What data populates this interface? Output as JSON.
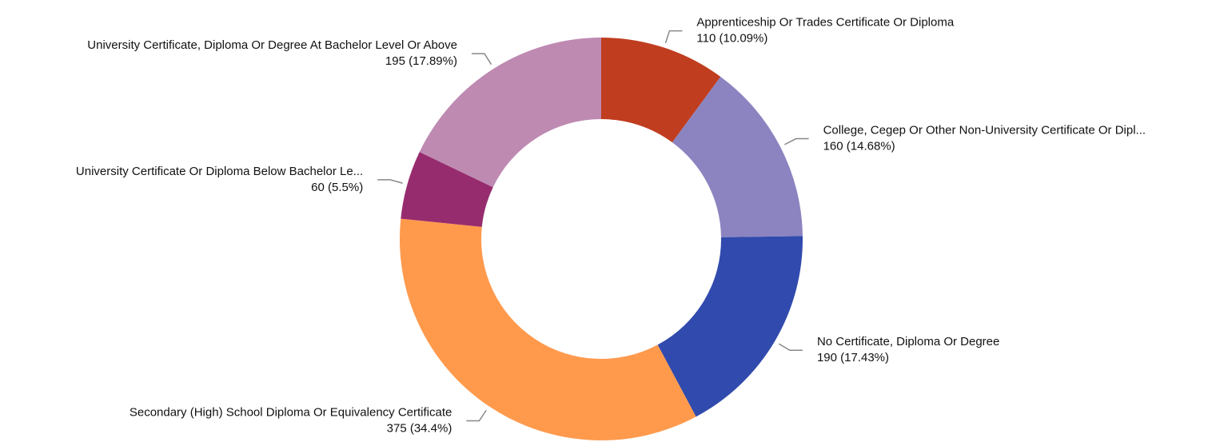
{
  "chart_data": {
    "type": "donut",
    "categories": [
      "Apprenticeship Or Trades Certificate Or Diploma",
      "College, Cegep Or Other Non-University Certificate Or Dipl...",
      "No Certificate, Diploma Or Degree",
      "Secondary (High) School Diploma Or Equivalency Certificate",
      "University Certificate Or Diploma Below Bachelor Le...",
      "University Certificate, Diploma Or Degree At Bachelor Level Or Above"
    ],
    "values": [
      110,
      160,
      190,
      375,
      60,
      195
    ],
    "value_labels": [
      "110 (10.09%)",
      "160 (14.68%)",
      "190 (17.43%)",
      "375 (34.4%)",
      "60 (5.5%)",
      "195 (17.89%)"
    ],
    "colors": [
      "#c03d1f",
      "#8b84c0",
      "#314aad",
      "#ff9a4d",
      "#962c6e",
      "#be8ab2"
    ]
  }
}
